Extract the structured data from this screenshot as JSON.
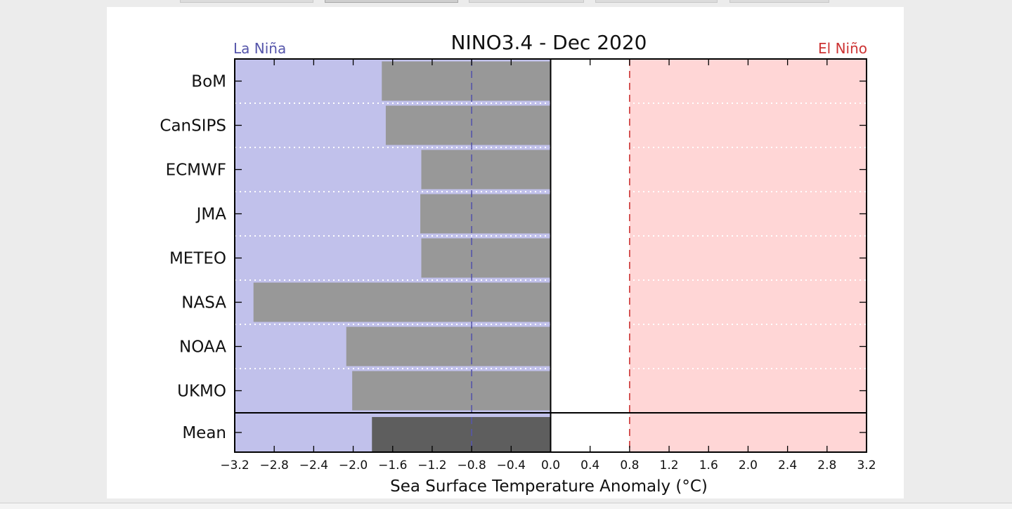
{
  "tabs": [
    "",
    "",
    "",
    "",
    ""
  ],
  "chart_data": {
    "type": "bar",
    "orientation": "horizontal",
    "title": "NINO3.4 - Dec 2020",
    "xlabel": "Sea Surface Temperature Anomaly (°C)",
    "ylabel": "",
    "xlim": [
      -3.2,
      3.2
    ],
    "xticks": [
      -3.2,
      -2.8,
      -2.4,
      -2.0,
      -1.6,
      -1.2,
      -0.8,
      -0.4,
      0.0,
      0.4,
      0.8,
      1.2,
      1.6,
      2.0,
      2.4,
      2.8,
      3.2
    ],
    "xtick_labels": [
      "−3.2",
      "−2.8",
      "−2.4",
      "−2.0",
      "−1.6",
      "−1.2",
      "−0.8",
      "−0.4",
      "0.0",
      "0.4",
      "0.8",
      "1.2",
      "1.6",
      "2.0",
      "2.4",
      "2.8",
      "3.2"
    ],
    "categories": [
      "BoM",
      "CanSIPS",
      "ECMWF",
      "JMA",
      "METEO",
      "NASA",
      "NOAA",
      "UKMO",
      "Mean"
    ],
    "values": [
      -1.71,
      -1.67,
      -1.31,
      -1.32,
      -1.31,
      -3.01,
      -2.07,
      -2.01,
      -1.81
    ],
    "thresholds": {
      "la_nina": {
        "label": "La Niña",
        "value": -0.8,
        "color": "#5555aa"
      },
      "el_nino": {
        "label": "El Niño",
        "value": 0.8,
        "color": "#cc3333"
      }
    },
    "colors": {
      "la_nina_region": "#c1c1eb",
      "el_nino_region": "#ffd6d6",
      "neutral_region": "#ffffff",
      "model_bar": "#989898",
      "mean_bar": "#5e5e5e"
    },
    "grid": true
  }
}
